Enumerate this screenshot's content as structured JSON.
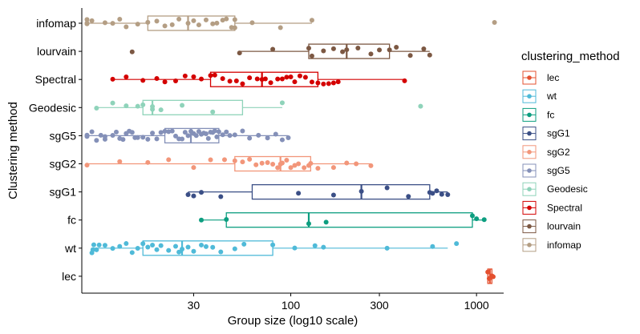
{
  "chart_data": {
    "type": "boxplot-jitter",
    "xlabel": "Group size (log10 scale)",
    "ylabel": "Clustering method",
    "x_scale": "log10",
    "xlim": [
      7.5,
      1400
    ],
    "x_ticks": [
      30,
      100,
      300,
      1000
    ],
    "x_tick_labels": [
      "30",
      "100",
      "300",
      "1000"
    ],
    "grid": false,
    "legend": {
      "title": "clustering_method",
      "placement": "right",
      "entries": [
        "lec",
        "wt",
        "fc",
        "sgG1",
        "sgG2",
        "sgG5",
        "Geodesic",
        "Spectral",
        "lourvain",
        "infomap"
      ]
    },
    "categories": [
      "infomap",
      "lourvain",
      "Spectral",
      "Geodesic",
      "sgG5",
      "sgG2",
      "sgG1",
      "fc",
      "wt",
      "lec"
    ],
    "series": [
      {
        "name": "infomap",
        "color": "#b49e84",
        "box": {
          "whisker_low": 8,
          "q1": 17,
          "median": 28,
          "q3": 50,
          "whisker_high": 130
        },
        "points": [
          8,
          8,
          8,
          8.5,
          10,
          11,
          12,
          13,
          15,
          17,
          19,
          21,
          23,
          25,
          28,
          30,
          32,
          35,
          38,
          40,
          43,
          45,
          48,
          50,
          50,
          62,
          88,
          130,
          1250
        ]
      },
      {
        "name": "lourvain",
        "color": "#7c5843",
        "box": {
          "whisker_low": 53,
          "q1": 125,
          "median": 200,
          "q3": 340,
          "whisker_high": 560
        },
        "points": [
          14,
          53,
          80,
          125,
          130,
          150,
          170,
          190,
          200,
          230,
          270,
          300,
          340,
          370,
          440,
          520,
          560
        ]
      },
      {
        "name": "Spectral",
        "color": "#d40000",
        "box": {
          "whisker_low": 11,
          "q1": 37,
          "median": 70,
          "q3": 140,
          "whisker_high": 410
        },
        "points": [
          11,
          13,
          16,
          19,
          21,
          24,
          27,
          30,
          33,
          37,
          39,
          43,
          47,
          51,
          55,
          60,
          66,
          70,
          73,
          78,
          85,
          90,
          95,
          100,
          105,
          112,
          120,
          130,
          140,
          150,
          160,
          170,
          180,
          410
        ]
      },
      {
        "name": "Geodesic",
        "color": "#8fd3ba",
        "box": {
          "whisker_low": 9,
          "q1": 16,
          "median": 18,
          "q3": 55,
          "whisker_high": 90
        },
        "points": [
          9,
          11,
          13,
          15,
          16,
          18,
          18,
          20,
          26,
          38,
          90,
          500
        ]
      },
      {
        "name": "sgG5",
        "color": "#8490b8",
        "box": {
          "whisker_low": 8,
          "q1": 21,
          "median": 29,
          "q3": 41,
          "whisker_high": 97
        },
        "points": [
          8,
          8,
          8.5,
          9,
          9.5,
          10,
          10,
          11,
          11.5,
          12,
          12.5,
          13,
          13.5,
          14,
          14.5,
          15,
          16,
          17,
          18,
          19,
          20,
          21,
          22,
          23,
          24,
          25,
          26,
          27,
          28,
          29,
          30,
          31,
          32,
          33,
          34,
          35,
          36,
          37,
          38,
          39,
          40,
          41,
          43,
          45,
          47,
          50,
          55,
          60,
          67,
          75,
          83,
          90,
          97
        ]
      },
      {
        "name": "sgG2",
        "color": "#f2967a",
        "box": {
          "whisker_low": 8,
          "q1": 50,
          "median": 88,
          "q3": 128,
          "whisker_high": 270
        },
        "points": [
          8,
          12,
          17,
          22,
          30,
          37,
          44,
          50,
          55,
          60,
          65,
          70,
          75,
          80,
          85,
          88,
          90,
          95,
          100,
          105,
          110,
          118,
          125,
          128,
          140,
          170,
          200,
          225,
          270
        ]
      },
      {
        "name": "sgG1",
        "color": "#3b4f86",
        "box": {
          "whisker_low": 28,
          "q1": 62,
          "median": 240,
          "q3": 560,
          "whisker_high": 700
        },
        "points": [
          28,
          30,
          33,
          42,
          110,
          170,
          240,
          330,
          430,
          560,
          580,
          610,
          650,
          700
        ]
      },
      {
        "name": "fc",
        "color": "#0d9e80",
        "box": {
          "whisker_low": 33,
          "q1": 45,
          "median": 125,
          "q3": 950,
          "whisker_high": 1100
        },
        "points": [
          33,
          45,
          125,
          155,
          950,
          1000,
          1100
        ]
      },
      {
        "name": "wt",
        "color": "#4fbad8",
        "box": {
          "whisker_low": 8.5,
          "q1": 16,
          "median": 26,
          "q3": 80,
          "whisker_high": 700
        },
        "points": [
          8.5,
          8.6,
          8.7,
          9,
          9.3,
          10,
          11,
          12,
          13,
          14,
          15,
          16,
          17,
          18,
          19,
          20,
          22,
          24,
          25,
          26,
          28,
          30,
          33,
          35,
          38,
          42,
          50,
          56,
          80,
          105,
          135,
          150,
          330,
          580,
          780
        ]
      },
      {
        "name": "lec",
        "color": "#e4502f",
        "box": {
          "whisker_low": 1150,
          "q1": 1150,
          "median": 1180,
          "q3": 1210,
          "whisker_high": 1230
        },
        "points": [
          1150,
          1170,
          1210,
          1230
        ]
      }
    ]
  }
}
